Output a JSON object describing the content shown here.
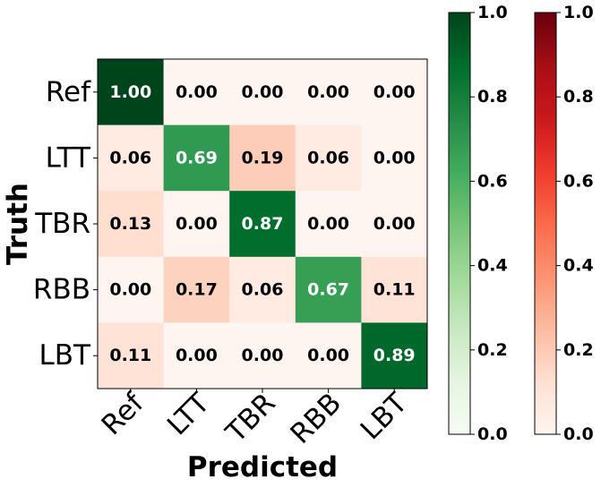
{
  "chart_data": {
    "type": "heatmap",
    "xlabel": "Predicted",
    "ylabel": "Truth",
    "x_categories": [
      "Ref",
      "LTT",
      "TBR",
      "RBB",
      "LBT"
    ],
    "y_categories": [
      "Ref",
      "LTT",
      "TBR",
      "RBB",
      "LBT"
    ],
    "values": [
      [
        1.0,
        0.0,
        0.0,
        0.0,
        0.0
      ],
      [
        0.06,
        0.69,
        0.19,
        0.06,
        0.0
      ],
      [
        0.13,
        0.0,
        0.87,
        0.0,
        0.0
      ],
      [
        0.0,
        0.17,
        0.06,
        0.67,
        0.11
      ],
      [
        0.11,
        0.0,
        0.0,
        0.0,
        0.89
      ]
    ],
    "value_format": "0.00",
    "diagonal_colormap": "Greens",
    "offdiagonal_colormap": "Reds",
    "colorbars": [
      {
        "colormap": "Greens",
        "range": [
          0.0,
          1.0
        ],
        "ticks": [
          "0.0",
          "0.2",
          "0.4",
          "0.6",
          "0.8",
          "1.0"
        ]
      },
      {
        "colormap": "Reds",
        "range": [
          0.0,
          1.0
        ],
        "ticks": [
          "0.0",
          "0.2",
          "0.4",
          "0.6",
          "0.8",
          "1.0"
        ]
      }
    ]
  }
}
